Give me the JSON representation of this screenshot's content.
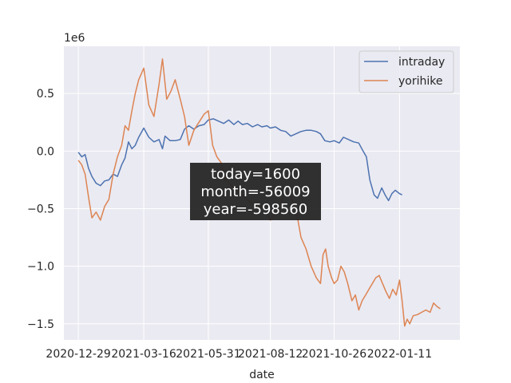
{
  "chart_data": {
    "type": "line",
    "xlabel": "date",
    "ylabel": "",
    "y_multiplier": "1e6",
    "x_type": "date",
    "x_ticks": [
      "2020-12-29",
      "2021-03-16",
      "2021-05-31",
      "2021-08-12",
      "2021-10-26",
      "2022-01-11"
    ],
    "y_ticks": [
      0.5,
      0.0,
      -0.5,
      -1.0,
      -1.5
    ],
    "y_tick_labels": [
      "0.5",
      "0.0",
      "−0.5",
      "−1.0",
      "−1.5"
    ],
    "xlim": [
      "2020-12-12",
      "2022-03-23"
    ],
    "ylim": [
      -1.64,
      0.91
    ],
    "grid": true,
    "legend": "top-right",
    "annotation": [
      "today=1600",
      "month=-56009",
      "year=-598560"
    ],
    "series": [
      {
        "name": "intraday",
        "color": "#4c72b0",
        "points": [
          [
            "2020-12-29",
            -0.01
          ],
          [
            "2021-01-02",
            -0.05
          ],
          [
            "2021-01-06",
            -0.03
          ],
          [
            "2021-01-10",
            -0.15
          ],
          [
            "2021-01-14",
            -0.22
          ],
          [
            "2021-01-19",
            -0.28
          ],
          [
            "2021-01-24",
            -0.3
          ],
          [
            "2021-01-29",
            -0.26
          ],
          [
            "2021-02-03",
            -0.25
          ],
          [
            "2021-02-08",
            -0.2
          ],
          [
            "2021-02-13",
            -0.22
          ],
          [
            "2021-02-18",
            -0.12
          ],
          [
            "2021-02-22",
            -0.06
          ],
          [
            "2021-02-26",
            0.08
          ],
          [
            "2021-03-02",
            0.02
          ],
          [
            "2021-03-06",
            0.05
          ],
          [
            "2021-03-10",
            0.12
          ],
          [
            "2021-03-16",
            0.2
          ],
          [
            "2021-03-22",
            0.12
          ],
          [
            "2021-03-28",
            0.08
          ],
          [
            "2021-04-03",
            0.1
          ],
          [
            "2021-04-07",
            0.02
          ],
          [
            "2021-04-10",
            0.13
          ],
          [
            "2021-04-16",
            0.09
          ],
          [
            "2021-04-22",
            0.09
          ],
          [
            "2021-04-28",
            0.1
          ],
          [
            "2021-05-03",
            0.19
          ],
          [
            "2021-05-08",
            0.22
          ],
          [
            "2021-05-14",
            0.19
          ],
          [
            "2021-05-20",
            0.22
          ],
          [
            "2021-05-26",
            0.23
          ],
          [
            "2021-05-31",
            0.27
          ],
          [
            "2021-06-06",
            0.28
          ],
          [
            "2021-06-12",
            0.26
          ],
          [
            "2021-06-18",
            0.24
          ],
          [
            "2021-06-24",
            0.27
          ],
          [
            "2021-06-30",
            0.23
          ],
          [
            "2021-07-05",
            0.26
          ],
          [
            "2021-07-10",
            0.23
          ],
          [
            "2021-07-16",
            0.24
          ],
          [
            "2021-07-22",
            0.21
          ],
          [
            "2021-07-28",
            0.23
          ],
          [
            "2021-08-02",
            0.21
          ],
          [
            "2021-08-08",
            0.22
          ],
          [
            "2021-08-12",
            0.2
          ],
          [
            "2021-08-18",
            0.21
          ],
          [
            "2021-08-24",
            0.18
          ],
          [
            "2021-08-30",
            0.17
          ],
          [
            "2021-09-05",
            0.13
          ],
          [
            "2021-09-11",
            0.15
          ],
          [
            "2021-09-17",
            0.17
          ],
          [
            "2021-09-23",
            0.18
          ],
          [
            "2021-09-29",
            0.18
          ],
          [
            "2021-10-05",
            0.17
          ],
          [
            "2021-10-10",
            0.15
          ],
          [
            "2021-10-15",
            0.09
          ],
          [
            "2021-10-21",
            0.08
          ],
          [
            "2021-10-26",
            0.09
          ],
          [
            "2021-11-01",
            0.07
          ],
          [
            "2021-11-06",
            0.12
          ],
          [
            "2021-11-12",
            0.1
          ],
          [
            "2021-11-18",
            0.08
          ],
          [
            "2021-11-24",
            0.07
          ],
          [
            "2021-11-29",
            0.0
          ],
          [
            "2021-12-03",
            -0.05
          ],
          [
            "2021-12-07",
            -0.25
          ],
          [
            "2021-12-12",
            -0.38
          ],
          [
            "2021-12-16",
            -0.41
          ],
          [
            "2021-12-21",
            -0.32
          ],
          [
            "2021-12-25",
            -0.38
          ],
          [
            "2021-12-29",
            -0.43
          ],
          [
            "2022-01-02",
            -0.37
          ],
          [
            "2022-01-06",
            -0.34
          ],
          [
            "2022-01-11",
            -0.37
          ],
          [
            "2022-01-14",
            -0.38
          ]
        ]
      },
      {
        "name": "yorihike",
        "color": "#dd8452",
        "points": [
          [
            "2020-12-29",
            -0.08
          ],
          [
            "2021-01-02",
            -0.12
          ],
          [
            "2021-01-06",
            -0.2
          ],
          [
            "2021-01-10",
            -0.4
          ],
          [
            "2021-01-14",
            -0.58
          ],
          [
            "2021-01-19",
            -0.53
          ],
          [
            "2021-01-24",
            -0.6
          ],
          [
            "2021-01-29",
            -0.48
          ],
          [
            "2021-02-03",
            -0.42
          ],
          [
            "2021-02-08",
            -0.2
          ],
          [
            "2021-02-13",
            -0.05
          ],
          [
            "2021-02-18",
            0.05
          ],
          [
            "2021-02-22",
            0.22
          ],
          [
            "2021-02-26",
            0.18
          ],
          [
            "2021-03-02",
            0.35
          ],
          [
            "2021-03-06",
            0.5
          ],
          [
            "2021-03-10",
            0.62
          ],
          [
            "2021-03-16",
            0.72
          ],
          [
            "2021-03-22",
            0.4
          ],
          [
            "2021-03-28",
            0.3
          ],
          [
            "2021-04-03",
            0.58
          ],
          [
            "2021-04-07",
            0.8
          ],
          [
            "2021-04-12",
            0.45
          ],
          [
            "2021-04-17",
            0.52
          ],
          [
            "2021-04-22",
            0.62
          ],
          [
            "2021-04-28",
            0.45
          ],
          [
            "2021-05-03",
            0.3
          ],
          [
            "2021-05-08",
            0.05
          ],
          [
            "2021-05-14",
            0.18
          ],
          [
            "2021-05-20",
            0.25
          ],
          [
            "2021-05-26",
            0.32
          ],
          [
            "2021-05-31",
            0.35
          ],
          [
            "2021-06-05",
            0.05
          ],
          [
            "2021-06-10",
            -0.05
          ],
          [
            "2021-06-15",
            -0.1
          ],
          [
            "2021-06-20",
            -0.25
          ],
          [
            "2021-07-05",
            -0.35
          ],
          [
            "2021-07-20",
            -0.45
          ],
          [
            "2021-08-05",
            -0.5
          ],
          [
            "2021-08-12",
            -0.6
          ],
          [
            "2021-08-18",
            -0.55
          ],
          [
            "2021-08-24",
            -0.45
          ],
          [
            "2021-08-30",
            -0.35
          ],
          [
            "2021-09-05",
            -0.4
          ],
          [
            "2021-09-11",
            -0.5
          ],
          [
            "2021-09-17",
            -0.75
          ],
          [
            "2021-09-23",
            -0.85
          ],
          [
            "2021-09-29",
            -1.0
          ],
          [
            "2021-10-05",
            -1.1
          ],
          [
            "2021-10-10",
            -1.15
          ],
          [
            "2021-10-13",
            -0.9
          ],
          [
            "2021-10-16",
            -0.85
          ],
          [
            "2021-10-19",
            -1.0
          ],
          [
            "2021-10-23",
            -1.1
          ],
          [
            "2021-10-26",
            -1.15
          ],
          [
            "2021-10-30",
            -1.12
          ],
          [
            "2021-11-03",
            -1.0
          ],
          [
            "2021-11-07",
            -1.05
          ],
          [
            "2021-11-11",
            -1.15
          ],
          [
            "2021-11-16",
            -1.3
          ],
          [
            "2021-11-20",
            -1.25
          ],
          [
            "2021-11-24",
            -1.38
          ],
          [
            "2021-11-28",
            -1.3
          ],
          [
            "2021-12-02",
            -1.25
          ],
          [
            "2021-12-06",
            -1.2
          ],
          [
            "2021-12-10",
            -1.15
          ],
          [
            "2021-12-14",
            -1.1
          ],
          [
            "2021-12-18",
            -1.08
          ],
          [
            "2021-12-22",
            -1.15
          ],
          [
            "2021-12-26",
            -1.22
          ],
          [
            "2021-12-30",
            -1.28
          ],
          [
            "2022-01-03",
            -1.2
          ],
          [
            "2022-01-07",
            -1.25
          ],
          [
            "2022-01-11",
            -1.12
          ],
          [
            "2022-01-14",
            -1.3
          ],
          [
            "2022-01-17",
            -1.52
          ],
          [
            "2022-01-20",
            -1.46
          ],
          [
            "2022-01-23",
            -1.5
          ],
          [
            "2022-01-27",
            -1.43
          ],
          [
            "2022-02-01",
            -1.42
          ],
          [
            "2022-02-06",
            -1.4
          ],
          [
            "2022-02-11",
            -1.38
          ],
          [
            "2022-02-16",
            -1.4
          ],
          [
            "2022-02-20",
            -1.32
          ],
          [
            "2022-02-24",
            -1.35
          ],
          [
            "2022-02-28",
            -1.37
          ]
        ]
      }
    ]
  }
}
